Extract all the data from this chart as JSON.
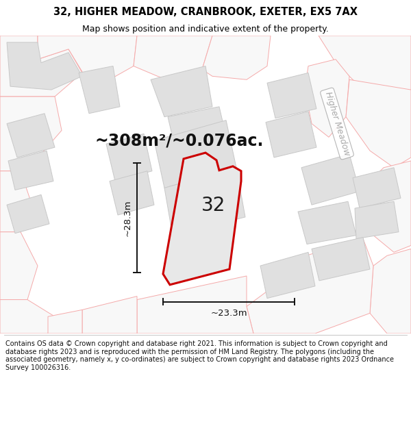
{
  "title": "32, HIGHER MEADOW, CRANBROOK, EXETER, EX5 7AX",
  "subtitle": "Map shows position and indicative extent of the property.",
  "area_text": "~308m²/~0.076ac.",
  "dim_h": "~28.3m",
  "dim_w": "~23.3m",
  "label_32": "32",
  "road_label": "Higher Meadow",
  "copyright": "Contains OS data © Crown copyright and database right 2021. This information is subject to Crown copyright and database rights 2023 and is reproduced with the permission of HM Land Registry. The polygons (including the associated geometry, namely x, y co-ordinates) are subject to Crown copyright and database rights 2023 Ordnance Survey 100026316.",
  "map_bg": "#f7f7f7",
  "building_color": "#e0e0e0",
  "building_edge": "#c8c8c8",
  "road_outline_color": "#f5aaaa",
  "road_fill": "#f8f8f8",
  "property_fill": "#e8e8e8",
  "property_edge": "#cc0000",
  "dim_line_color": "#111111",
  "road_label_color": "#aaaaaa",
  "title_fontsize": 10.5,
  "subtitle_fontsize": 9,
  "area_fontsize": 17,
  "label_fontsize": 20,
  "dim_fontsize": 9.5,
  "copyright_fontsize": 7.0,
  "road_label_fontsize": 9
}
